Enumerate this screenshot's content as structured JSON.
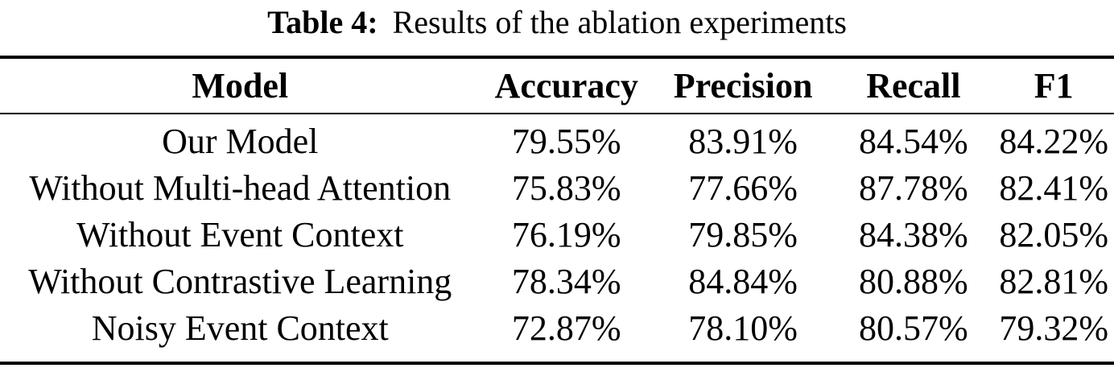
{
  "page": {
    "background_color": "#ffffff",
    "text_color": "#000000"
  },
  "caption": {
    "label": "Table 4:",
    "text": "Results of the ablation experiments"
  },
  "table": {
    "columns": [
      "Model",
      "Accuracy",
      "Precision",
      "Recall",
      "F1"
    ],
    "rows": [
      [
        "Our Model",
        "79.55%",
        "83.91%",
        "84.54%",
        "84.22%"
      ],
      [
        "Without Multi-head Attention",
        "75.83%",
        "77.66%",
        "87.78%",
        "82.41%"
      ],
      [
        "Without Event Context",
        "76.19%",
        "79.85%",
        "84.38%",
        "82.05%"
      ],
      [
        "Without Contrastive Learning",
        "78.34%",
        "84.84%",
        "80.88%",
        "82.81%"
      ],
      [
        "Noisy Event Context",
        "72.87%",
        "78.10%",
        "80.57%",
        "79.32%"
      ]
    ]
  },
  "chart_data": {
    "type": "table",
    "title": "Table 4: Results of the ablation experiments",
    "columns": [
      "Model",
      "Accuracy",
      "Precision",
      "Recall",
      "F1"
    ],
    "rows": [
      {
        "model": "Our Model",
        "accuracy": 79.55,
        "precision": 83.91,
        "recall": 84.54,
        "f1": 84.22
      },
      {
        "model": "Without Multi-head Attention",
        "accuracy": 75.83,
        "precision": 77.66,
        "recall": 87.78,
        "f1": 82.41
      },
      {
        "model": "Without Event Context",
        "accuracy": 76.19,
        "precision": 79.85,
        "recall": 84.38,
        "f1": 82.05
      },
      {
        "model": "Without Contrastive Learning",
        "accuracy": 78.34,
        "precision": 84.84,
        "recall": 80.88,
        "f1": 82.81
      },
      {
        "model": "Noisy Event Context",
        "accuracy": 72.87,
        "precision": 78.1,
        "recall": 80.57,
        "f1": 79.32
      }
    ],
    "units": "percent",
    "legend_position": "none",
    "grid": false
  }
}
